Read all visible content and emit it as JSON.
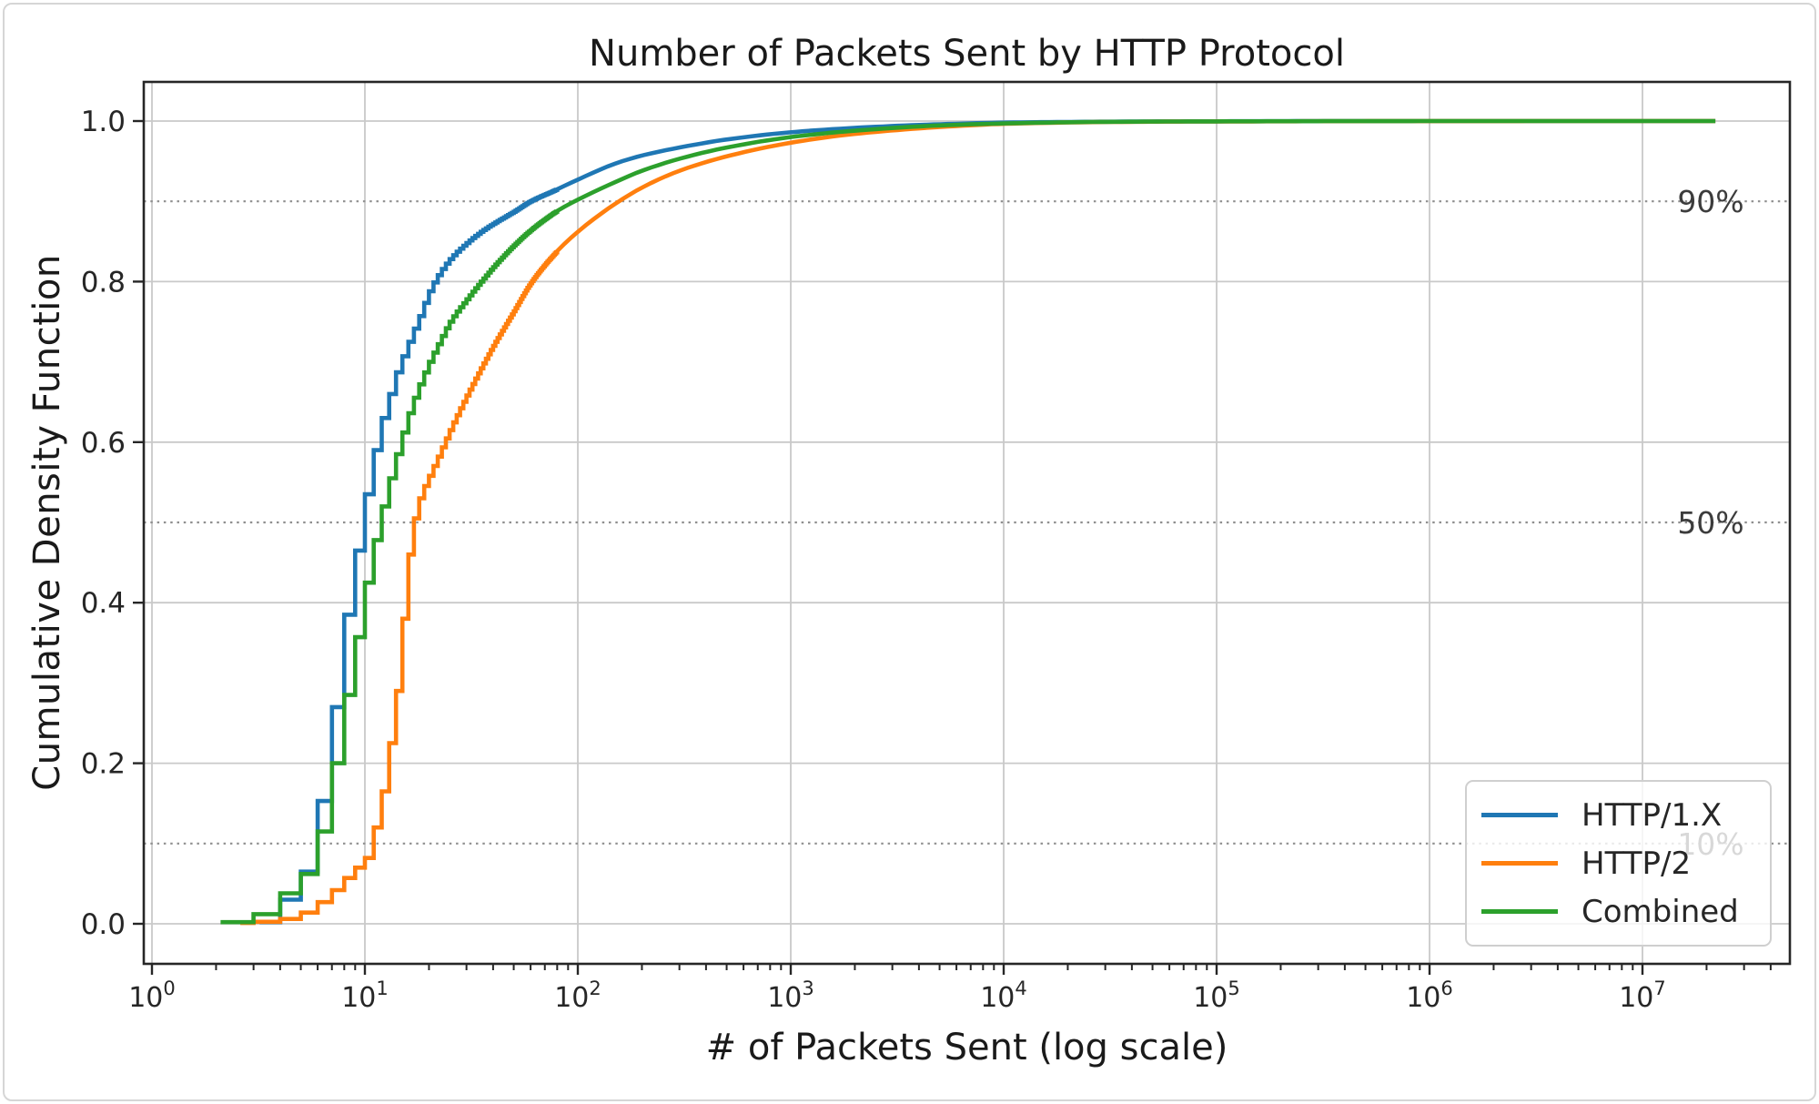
{
  "chart_data": {
    "type": "line",
    "subtype": "cdf-step",
    "title": "Number of Packets Sent by HTTP Protocol",
    "xlabel": "# of Packets Sent (log scale)",
    "ylabel": "Cumulative Density Function",
    "x_scale": "log",
    "x_tick_exponents": [
      0,
      1,
      2,
      3,
      4,
      5,
      6,
      7
    ],
    "x_tick_base": "10",
    "y_tick_labels": [
      "0.0",
      "0.2",
      "0.4",
      "0.6",
      "0.8",
      "1.0"
    ],
    "y_tick_values": [
      0.0,
      0.2,
      0.4,
      0.6,
      0.8,
      1.0
    ],
    "ylim": [
      0.0,
      1.0
    ],
    "grid": true,
    "legend_position": "lower right",
    "percent_lines": [
      {
        "value": 0.9,
        "label": "90%"
      },
      {
        "value": 0.5,
        "label": "50%"
      },
      {
        "value": 0.1,
        "label": "10%"
      }
    ],
    "style": {
      "grid_color": "#c9c9c9",
      "dotted_line_color": "#8f8f8f",
      "spine_color": "#262626",
      "text_color": "#262626",
      "percent_label_color": "#3c3c3c"
    },
    "series": [
      {
        "name": "HTTP/1.X",
        "color": "#1f77b4",
        "points": [
          [
            3.2,
            0.002
          ],
          [
            4,
            0.03
          ],
          [
            5,
            0.065
          ],
          [
            6,
            0.153
          ],
          [
            7,
            0.27
          ],
          [
            8,
            0.385
          ],
          [
            9,
            0.465
          ],
          [
            10,
            0.535
          ],
          [
            11,
            0.59
          ],
          [
            12,
            0.63
          ],
          [
            13,
            0.66
          ],
          [
            14,
            0.687
          ],
          [
            15,
            0.707
          ],
          [
            16,
            0.725
          ],
          [
            18,
            0.757
          ],
          [
            20,
            0.788
          ],
          [
            22,
            0.808
          ],
          [
            25,
            0.828
          ],
          [
            30,
            0.848
          ],
          [
            35,
            0.862
          ],
          [
            40,
            0.872
          ],
          [
            50,
            0.887
          ],
          [
            60,
            0.9
          ],
          [
            80,
            0.915
          ],
          [
            100,
            0.927
          ],
          [
            150,
            0.947
          ],
          [
            200,
            0.957
          ],
          [
            300,
            0.967
          ],
          [
            500,
            0.977
          ],
          [
            1000,
            0.986
          ],
          [
            2000,
            0.9915
          ],
          [
            5000,
            0.996
          ],
          [
            10000,
            0.998
          ],
          [
            30000,
            0.9992
          ],
          [
            100000,
            0.9997
          ],
          [
            1000000,
            0.99995
          ],
          [
            22000000,
            1.0
          ]
        ]
      },
      {
        "name": "HTTP/2",
        "color": "#ff7f0e",
        "points": [
          [
            2.6,
            0.001
          ],
          [
            4,
            0.006
          ],
          [
            5,
            0.014
          ],
          [
            6,
            0.027
          ],
          [
            7,
            0.042
          ],
          [
            8,
            0.057
          ],
          [
            9,
            0.07
          ],
          [
            10,
            0.082
          ],
          [
            11,
            0.12
          ],
          [
            12,
            0.165
          ],
          [
            13,
            0.225
          ],
          [
            14,
            0.29
          ],
          [
            15,
            0.38
          ],
          [
            16,
            0.46
          ],
          [
            17,
            0.505
          ],
          [
            18,
            0.53
          ],
          [
            20,
            0.558
          ],
          [
            22,
            0.582
          ],
          [
            25,
            0.615
          ],
          [
            30,
            0.658
          ],
          [
            35,
            0.692
          ],
          [
            40,
            0.72
          ],
          [
            50,
            0.763
          ],
          [
            60,
            0.798
          ],
          [
            80,
            0.838
          ],
          [
            100,
            0.862
          ],
          [
            150,
            0.897
          ],
          [
            200,
            0.917
          ],
          [
            300,
            0.938
          ],
          [
            500,
            0.956
          ],
          [
            1000,
            0.973
          ],
          [
            2000,
            0.984
          ],
          [
            5000,
            0.9925
          ],
          [
            10000,
            0.9965
          ],
          [
            30000,
            0.9988
          ],
          [
            100000,
            0.9995
          ],
          [
            1000000,
            0.9999
          ],
          [
            22000000,
            1.0
          ]
        ]
      },
      {
        "name": "Combined",
        "color": "#2ca02c",
        "points": [
          [
            2.1,
            0.002
          ],
          [
            3,
            0.012
          ],
          [
            4,
            0.038
          ],
          [
            5,
            0.062
          ],
          [
            6,
            0.115
          ],
          [
            7,
            0.2
          ],
          [
            8,
            0.285
          ],
          [
            9,
            0.357
          ],
          [
            10,
            0.425
          ],
          [
            11,
            0.478
          ],
          [
            12,
            0.52
          ],
          [
            13,
            0.555
          ],
          [
            14,
            0.585
          ],
          [
            15,
            0.612
          ],
          [
            16,
            0.636
          ],
          [
            18,
            0.672
          ],
          [
            20,
            0.7
          ],
          [
            22,
            0.722
          ],
          [
            25,
            0.75
          ],
          [
            30,
            0.778
          ],
          [
            35,
            0.8
          ],
          [
            40,
            0.818
          ],
          [
            50,
            0.845
          ],
          [
            60,
            0.864
          ],
          [
            80,
            0.888
          ],
          [
            100,
            0.902
          ],
          [
            150,
            0.924
          ],
          [
            200,
            0.938
          ],
          [
            300,
            0.953
          ],
          [
            500,
            0.967
          ],
          [
            1000,
            0.98
          ],
          [
            2000,
            0.988
          ],
          [
            5000,
            0.9945
          ],
          [
            10000,
            0.997
          ],
          [
            30000,
            0.999
          ],
          [
            100000,
            0.9996
          ],
          [
            1000000,
            0.99995
          ],
          [
            22000000,
            1.0
          ]
        ]
      }
    ]
  }
}
